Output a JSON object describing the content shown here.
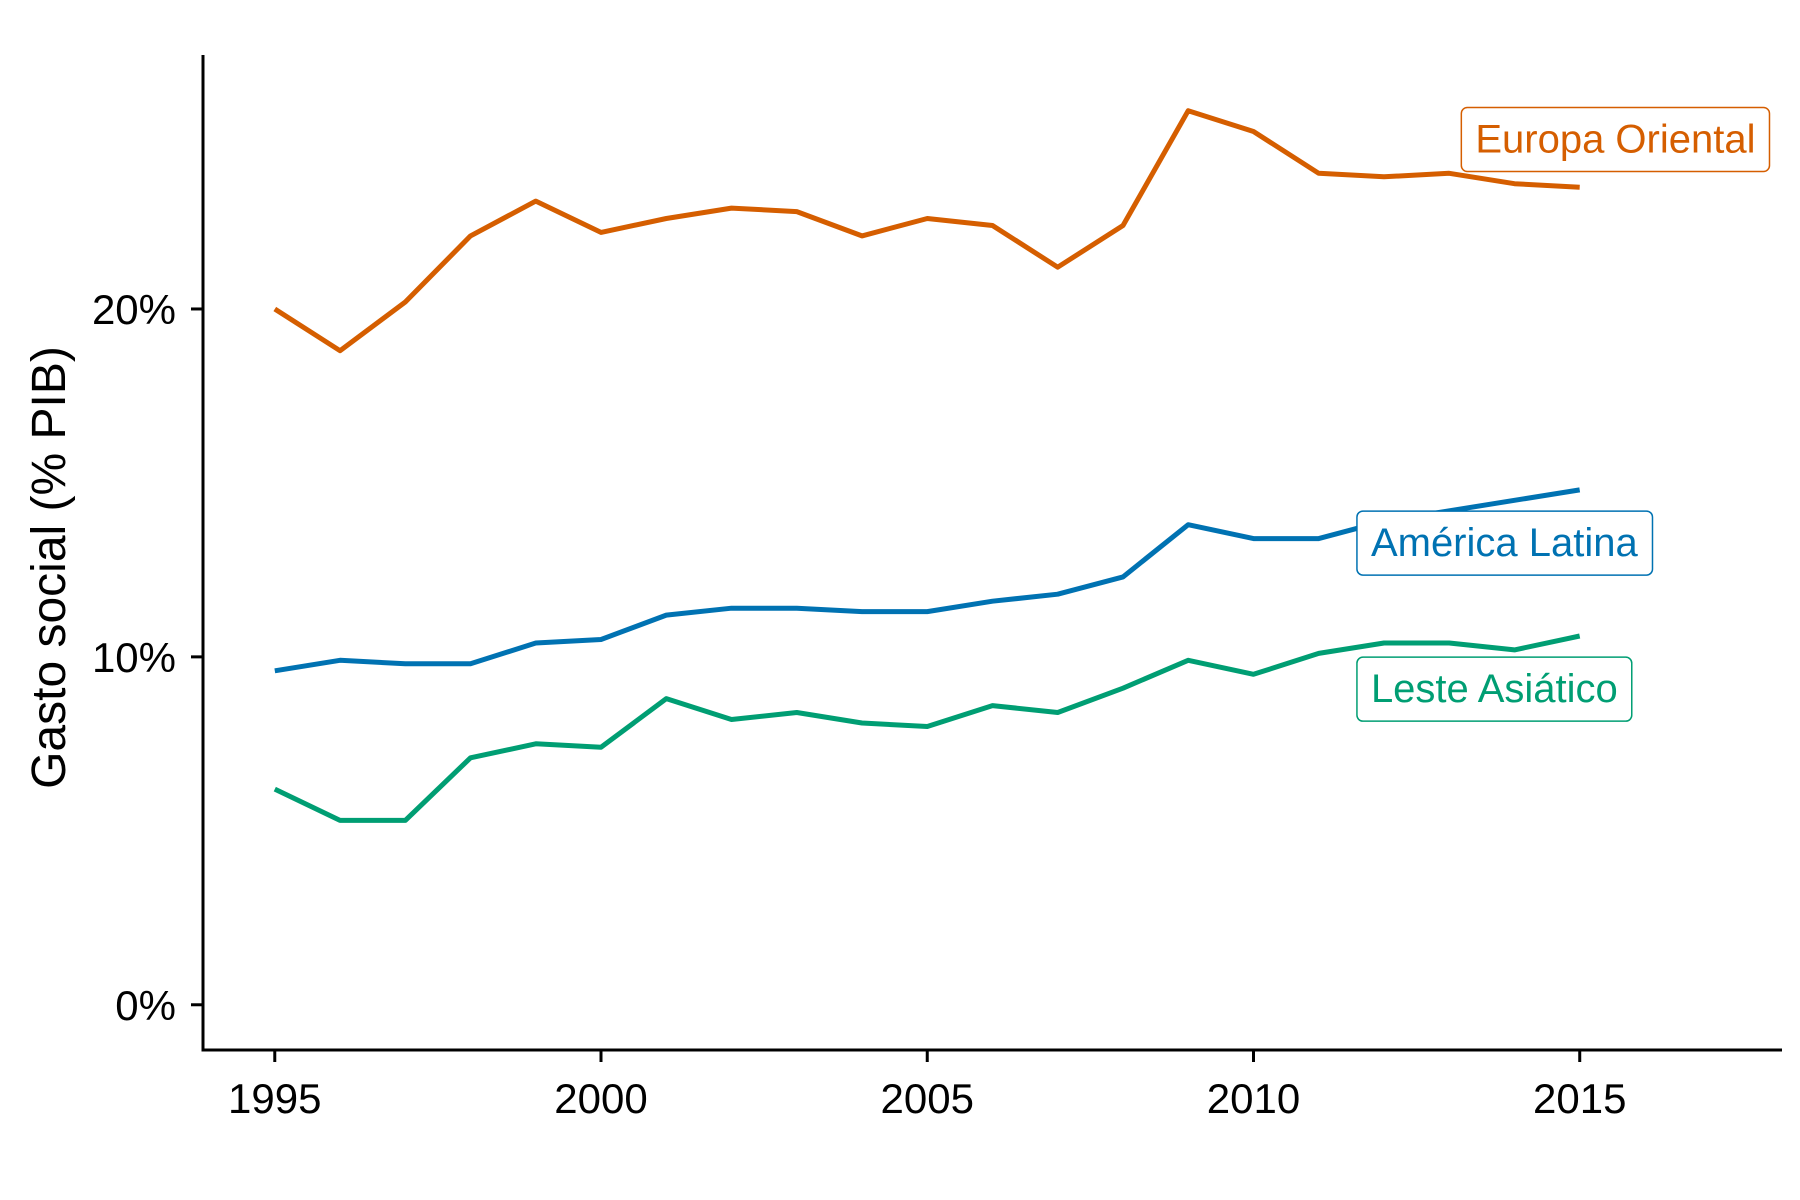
{
  "chart_data": {
    "type": "line",
    "title": "",
    "xlabel": "",
    "ylabel": "Gasto social (% PIB)",
    "xlim": [
      1993.9,
      2018.1
    ],
    "ylim": [
      -1.3,
      27.3
    ],
    "x_ticks": [
      1995,
      2000,
      2005,
      2010,
      2015
    ],
    "y_ticks": [
      0,
      10,
      20
    ],
    "y_tick_labels": [
      "0%",
      "10%",
      "20%"
    ],
    "grid": false,
    "legend": "direct-labels",
    "x": [
      1995,
      1996,
      1997,
      1998,
      1999,
      2000,
      2001,
      2002,
      2003,
      2004,
      2005,
      2006,
      2007,
      2008,
      2009,
      2010,
      2011,
      2012,
      2013,
      2014,
      2015
    ],
    "series": [
      {
        "name": "Europa Oriental",
        "color": "#D55E00",
        "values": [
          20.0,
          18.8,
          20.2,
          22.1,
          23.1,
          22.2,
          22.6,
          22.9,
          22.8,
          22.1,
          22.6,
          22.4,
          21.2,
          22.4,
          25.7,
          25.1,
          23.9,
          23.8,
          23.9,
          23.6,
          23.5
        ],
        "label_x": 2013.4,
        "label_y": 24.9
      },
      {
        "name": "América Latina",
        "color": "#0072B2",
        "values": [
          9.6,
          9.9,
          9.8,
          9.8,
          10.4,
          10.5,
          11.2,
          11.4,
          11.4,
          11.3,
          11.3,
          11.6,
          11.8,
          12.3,
          13.8,
          13.4,
          13.4,
          13.9,
          14.2,
          14.5,
          14.8
        ],
        "label_x": 2011.8,
        "label_y": 13.3
      },
      {
        "name": "Leste Asiático",
        "color": "#009E73",
        "values": [
          6.2,
          5.3,
          5.3,
          7.1,
          7.5,
          7.4,
          8.8,
          8.2,
          8.4,
          8.1,
          8.0,
          8.6,
          8.4,
          9.1,
          9.9,
          9.5,
          10.1,
          10.4,
          10.4,
          10.2,
          10.6
        ],
        "label_x": 2011.8,
        "label_y": 9.1
      }
    ]
  }
}
